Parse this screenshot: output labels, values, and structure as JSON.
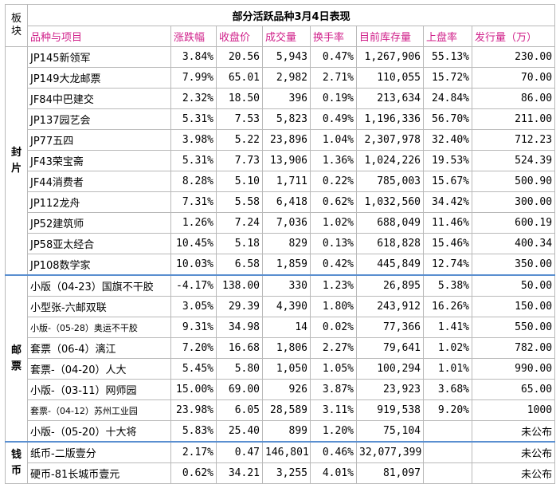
{
  "title": "部分活跃品种3月4日表现",
  "block_header": "板块",
  "headers": [
    "品种与项目",
    "涨跌幅",
    "收盘价",
    "成交量",
    "换手率",
    "目前库存量",
    "上盘率",
    "发行量（万）"
  ],
  "sections": [
    {
      "name": "封片",
      "rows": [
        {
          "name": "JP145新领军",
          "change": "3.84%",
          "dir": "up",
          "close": "20.56",
          "volume": "5,943",
          "turnover": "0.47%",
          "stock": "1,267,906",
          "listing": "55.13%",
          "issue": "230.00"
        },
        {
          "name": "JP149大龙邮票",
          "change": "7.99%",
          "dir": "up",
          "close": "65.01",
          "volume": "2,982",
          "turnover": "2.71%",
          "stock": "110,055",
          "listing": "15.72%",
          "issue": "70.00"
        },
        {
          "name": "JF84中巴建交",
          "change": "2.32%",
          "dir": "up",
          "close": "18.50",
          "volume": "396",
          "turnover": "0.19%",
          "stock": "213,634",
          "listing": "24.84%",
          "issue": "86.00"
        },
        {
          "name": "JP137园艺会",
          "change": "5.31%",
          "dir": "up",
          "close": "7.53",
          "volume": "5,823",
          "turnover": "0.49%",
          "stock": "1,196,336",
          "listing": "56.70%",
          "issue": "211.00"
        },
        {
          "name": "JP77五四",
          "change": "3.98%",
          "dir": "up",
          "close": "5.22",
          "volume": "23,896",
          "turnover": "1.04%",
          "stock": "2,307,978",
          "listing": "32.40%",
          "issue": "712.23"
        },
        {
          "name": "JF43荣宝斋",
          "change": "5.31%",
          "dir": "up",
          "close": "7.73",
          "volume": "13,906",
          "turnover": "1.36%",
          "stock": "1,024,226",
          "listing": "19.53%",
          "issue": "524.39"
        },
        {
          "name": "JF44消费者",
          "change": "8.28%",
          "dir": "up",
          "close": "5.10",
          "volume": "1,711",
          "turnover": "0.22%",
          "stock": "785,003",
          "listing": "15.67%",
          "issue": "500.90"
        },
        {
          "name": "JP112龙舟",
          "change": "7.31%",
          "dir": "up",
          "close": "5.58",
          "volume": "6,418",
          "turnover": "0.62%",
          "stock": "1,032,560",
          "listing": "34.42%",
          "issue": "300.00"
        },
        {
          "name": "JP52建筑师",
          "change": "1.26%",
          "dir": "up",
          "close": "7.24",
          "volume": "7,036",
          "turnover": "1.02%",
          "stock": "688,049",
          "listing": "11.46%",
          "issue": "600.19"
        },
        {
          "name": "JP58亚太经合",
          "change": "10.45%",
          "dir": "up",
          "close": "5.18",
          "volume": "829",
          "turnover": "0.13%",
          "stock": "618,828",
          "listing": "15.46%",
          "issue": "400.34"
        },
        {
          "name": "JP108数学家",
          "change": "10.03%",
          "dir": "up",
          "close": "6.58",
          "volume": "1,859",
          "turnover": "0.42%",
          "stock": "445,849",
          "listing": "12.74%",
          "issue": "350.00"
        }
      ]
    },
    {
      "name": "邮票",
      "rows": [
        {
          "name": "小版（04-23）国旗不干胶",
          "change": "-4.17%",
          "dir": "down",
          "close": "138.00",
          "volume": "330",
          "turnover": "1.23%",
          "stock": "26,895",
          "listing": "5.38%",
          "issue": "50.00"
        },
        {
          "name": "小型张-六邮双联",
          "change": "3.05%",
          "dir": "up",
          "close": "29.39",
          "volume": "4,390",
          "turnover": "1.80%",
          "stock": "243,912",
          "listing": "16.26%",
          "issue": "150.00"
        },
        {
          "name": "小版-（05-28）奥运不干胶",
          "change": "9.31%",
          "dir": "up",
          "close": "34.98",
          "volume": "14",
          "turnover": "0.02%",
          "stock": "77,366",
          "listing": "1.41%",
          "issue": "550.00",
          "small": true
        },
        {
          "name": "套票（06-4）漓江",
          "change": "7.20%",
          "dir": "up",
          "close": "16.68",
          "volume": "1,806",
          "turnover": "2.27%",
          "stock": "79,641",
          "listing": "1.02%",
          "issue": "782.00"
        },
        {
          "name": "套票-（04-20）人大",
          "change": "5.45%",
          "dir": "up",
          "close": "5.80",
          "volume": "1,050",
          "turnover": "1.05%",
          "stock": "100,294",
          "listing": "1.01%",
          "issue": "990.00"
        },
        {
          "name": "小版-（03-11）网师园",
          "change": "15.00%",
          "dir": "up",
          "close": "69.00",
          "volume": "926",
          "turnover": "3.87%",
          "stock": "23,923",
          "listing": "3.68%",
          "issue": "65.00"
        },
        {
          "name": "套票-（04-12）苏州工业园",
          "change": "23.98%",
          "dir": "up",
          "close": "6.05",
          "volume": "28,589",
          "turnover": "3.11%",
          "stock": "919,538",
          "listing": "9.20%",
          "issue": "1000",
          "small": true
        },
        {
          "name": "小版-（05-20）十大将",
          "change": "5.83%",
          "dir": "up",
          "close": "25.40",
          "volume": "899",
          "turnover": "1.20%",
          "stock": "75,104",
          "listing": "",
          "issue": "未公布"
        }
      ]
    },
    {
      "name": "钱币",
      "rows": [
        {
          "name": "纸币-二版壹分",
          "change": "2.17%",
          "dir": "up",
          "close": "0.47",
          "volume": "146,801",
          "turnover": "0.46%",
          "stock": "32,077,399",
          "listing": "",
          "issue": "未公布"
        },
        {
          "name": "硬币-81长城币壹元",
          "change": "0.62%",
          "dir": "up",
          "close": "34.21",
          "volume": "3,255",
          "turnover": "4.01%",
          "stock": "81,097",
          "listing": "",
          "issue": "未公布"
        }
      ]
    }
  ]
}
